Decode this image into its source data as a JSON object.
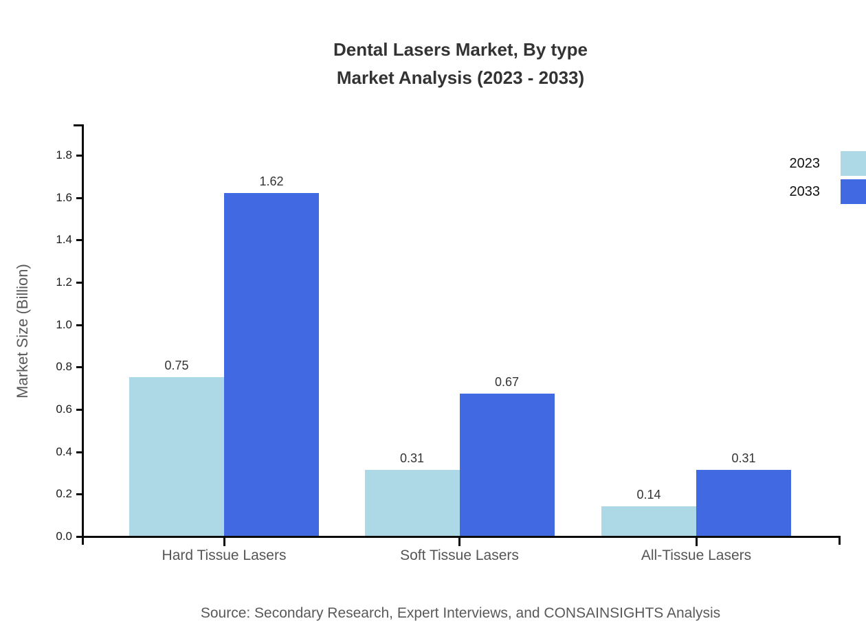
{
  "title": {
    "line1": "Dental Lasers Market, By type",
    "line2": "Market Analysis (2023 - 2033)"
  },
  "source": "Source: Secondary Research, Expert Interviews, and CONSAINSIGHTS Analysis",
  "chart_data": {
    "type": "bar",
    "categories": [
      "Hard Tissue Lasers",
      "Soft Tissue Lasers",
      "All-Tissue Lasers"
    ],
    "series": [
      {
        "name": "2023",
        "color": "#ADD8E6",
        "values": [
          0.75,
          0.31,
          0.14
        ]
      },
      {
        "name": "2033",
        "color": "#4169E1",
        "values": [
          1.62,
          0.67,
          0.31
        ]
      }
    ],
    "title": "Dental Lasers Market, By type Market Analysis (2023 - 2033)",
    "xlabel": "",
    "ylabel": "Market Size (Billion)",
    "ylim": [
      0,
      1.95
    ],
    "yticks": [
      0.0,
      0.2,
      0.4,
      0.6,
      0.8,
      1.0,
      1.2,
      1.4,
      1.6,
      1.8
    ],
    "grid": false,
    "legend_position": "upper-right",
    "value_labels": true
  }
}
